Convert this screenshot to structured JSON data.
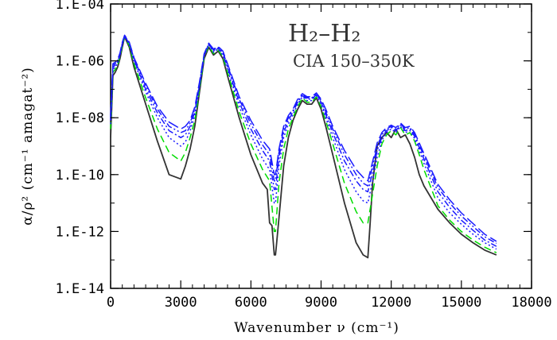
{
  "chart_data": {
    "type": "line",
    "title": "H₂–H₂",
    "subtitle": "CIA 150–350K",
    "xlabel": "Wavenumber ν (cm⁻¹)",
    "ylabel": "α/ρ² (cm⁻¹ amagat⁻²)",
    "xlim": [
      0,
      18000
    ],
    "ylim": [
      1e-14,
      0.0001
    ],
    "yscale": "log",
    "x_ticks": [
      "0",
      "3000",
      "6000",
      "9000",
      "12000",
      "15000",
      "18000"
    ],
    "y_ticks": [
      "1.E-14",
      "1.E-12",
      "1.E-10",
      "1.E-08",
      "1.E-06",
      "1.E-04"
    ],
    "grid": false,
    "series": [
      {
        "color": "#333333",
        "dash": "solid",
        "x": [
          0,
          100,
          200,
          300,
          400,
          500,
          600,
          800,
          1000,
          1500,
          2000,
          2500,
          3000,
          3200,
          3400,
          3600,
          3800,
          4000,
          4200,
          4400,
          4600,
          4800,
          5000,
          5500,
          6000,
          6500,
          6700,
          6800,
          6900,
          7000,
          7050,
          7100,
          7200,
          7400,
          7600,
          7800,
          8000,
          8200,
          8400,
          8600,
          8800,
          9000,
          9200,
          9500,
          10000,
          10500,
          10800,
          11000,
          11100,
          11200,
          11400,
          11600,
          11800,
          12000,
          12200,
          12400,
          12600,
          12800,
          13000,
          13200,
          13400,
          14000,
          14500,
          15000,
          15500,
          16000,
          16500
        ],
        "y": [
          2e-09,
          3e-07,
          4e-07,
          6e-07,
          1.2e-06,
          3e-06,
          7e-06,
          3e-06,
          6e-07,
          3e-08,
          1.5e-09,
          1e-10,
          7e-11,
          2e-10,
          8e-10,
          5e-09,
          8e-08,
          1.2e-06,
          3e-06,
          1.6e-06,
          2.2e-06,
          1.2e-06,
          3e-07,
          1e-08,
          5e-10,
          5e-11,
          3e-11,
          2e-12,
          1.6e-12,
          1.5e-13,
          1.5e-13,
          4e-13,
          3e-12,
          2e-10,
          2e-09,
          8e-09,
          2e-08,
          4e-08,
          3e-08,
          3e-08,
          5e-08,
          2e-08,
          5e-09,
          5e-10,
          1e-11,
          4e-13,
          1.5e-13,
          1.2e-13,
          2e-12,
          5e-11,
          1e-09,
          2e-09,
          3e-09,
          2e-09,
          4e-09,
          2e-09,
          2.5e-09,
          1.2e-09,
          4e-10,
          1e-10,
          4e-11,
          6e-12,
          2e-12,
          8e-13,
          4e-13,
          2.2e-13,
          1.5e-13
        ]
      },
      {
        "color": "#00dd00",
        "dash": "dashed",
        "x": [
          0,
          100,
          200,
          300,
          400,
          500,
          600,
          800,
          1000,
          1500,
          2000,
          2500,
          3000,
          3200,
          3400,
          3600,
          3800,
          4000,
          4200,
          4400,
          4600,
          4800,
          5000,
          5500,
          6000,
          6500,
          6800,
          7000,
          7050,
          7200,
          7400,
          7600,
          7800,
          8000,
          8200,
          8400,
          8600,
          8800,
          9000,
          9200,
          9500,
          10000,
          10500,
          10800,
          11000,
          11200,
          11400,
          11600,
          11800,
          12000,
          12200,
          12400,
          12600,
          12800,
          13000,
          13200,
          13400,
          14000,
          14500,
          15000,
          15500,
          16000,
          16500
        ],
        "y": [
          4e-09,
          4e-07,
          5e-07,
          7e-07,
          1.5e-06,
          3.5e-06,
          7e-06,
          3.5e-06,
          8e-07,
          5e-08,
          4e-09,
          6e-10,
          3e-10,
          6e-10,
          2e-09,
          8e-09,
          1e-07,
          1.4e-06,
          3.4e-06,
          1.8e-06,
          2.4e-06,
          1.4e-06,
          4e-07,
          1.6e-08,
          1.2e-09,
          1.5e-10,
          6e-11,
          1e-12,
          1e-12,
          5e-11,
          8e-10,
          4e-09,
          1e-08,
          2.5e-08,
          5e-08,
          3.5e-08,
          3.5e-08,
          5.5e-08,
          2.5e-08,
          8e-09,
          1.2e-09,
          5e-11,
          5e-12,
          2e-12,
          2e-12,
          2e-11,
          2e-10,
          1.2e-09,
          2.5e-09,
          3.5e-09,
          2.5e-09,
          4.5e-09,
          2.5e-09,
          3e-09,
          1.5e-09,
          5e-10,
          1.5e-10,
          8e-12,
          2.5e-12,
          1e-12,
          5e-13,
          2.8e-13,
          1.8e-13
        ]
      },
      {
        "color": "#1a1aff",
        "dash": "dotted",
        "x": [
          0,
          100,
          200,
          300,
          400,
          500,
          600,
          800,
          1000,
          1500,
          2000,
          2500,
          3000,
          3200,
          3400,
          3600,
          3800,
          4000,
          4200,
          4400,
          4600,
          4800,
          5000,
          5500,
          6000,
          6500,
          6800,
          7000,
          7050,
          7200,
          7400,
          7600,
          7800,
          8000,
          8200,
          8400,
          8600,
          8800,
          9000,
          9200,
          9500,
          10000,
          10500,
          10800,
          11000,
          11200,
          11400,
          11600,
          11800,
          12000,
          12200,
          12400,
          12600,
          12800,
          13000,
          13200,
          13400,
          14000,
          14500,
          15000,
          15500,
          16000,
          16500
        ],
        "y": [
          6e-09,
          5e-07,
          6e-07,
          8e-07,
          1.6e-06,
          3.8e-06,
          7.2e-06,
          3.8e-06,
          1e-06,
          8e-08,
          1e-08,
          2e-09,
          1e-09,
          1.4e-09,
          3.5e-09,
          1.2e-08,
          1.2e-07,
          1.5e-06,
          3.6e-06,
          2e-06,
          2.6e-06,
          1.6e-06,
          5e-07,
          2.5e-08,
          2.5e-09,
          3.5e-10,
          1.5e-10,
          1e-11,
          1e-11,
          2e-10,
          2e-09,
          6e-09,
          1.3e-08,
          3e-08,
          5.5e-08,
          4e-08,
          4e-08,
          6e-08,
          3e-08,
          1e-08,
          2e-09,
          1.5e-10,
          2.5e-11,
          1.2e-11,
          1e-11,
          6e-11,
          4e-10,
          1.6e-09,
          3e-09,
          4e-09,
          3e-09,
          5e-09,
          3e-09,
          3.5e-09,
          1.8e-09,
          7e-10,
          2.5e-10,
          1.5e-11,
          4.5e-12,
          1.8e-12,
          8e-13,
          4e-13,
          2.4e-13
        ]
      },
      {
        "color": "#1a1aff",
        "dash": "dash-dot",
        "x": [
          0,
          100,
          200,
          300,
          400,
          500,
          600,
          800,
          1000,
          1500,
          2000,
          2500,
          3000,
          3200,
          3400,
          3600,
          3800,
          4000,
          4200,
          4400,
          4600,
          4800,
          5000,
          5500,
          6000,
          6500,
          6800,
          7000,
          7050,
          7200,
          7400,
          7600,
          7800,
          8000,
          8200,
          8400,
          8600,
          8800,
          9000,
          9200,
          9500,
          10000,
          10500,
          10800,
          11000,
          11200,
          11400,
          11600,
          11800,
          12000,
          12200,
          12400,
          12600,
          12800,
          13000,
          13200,
          13400,
          14000,
          14500,
          15000,
          15500,
          16000,
          16500
        ],
        "y": [
          8e-09,
          6e-07,
          7e-07,
          9e-07,
          1.7e-06,
          4e-06,
          7.5e-06,
          4e-06,
          1.1e-06,
          1e-07,
          1.5e-08,
          3.5e-09,
          2e-09,
          2.5e-09,
          5e-09,
          1.6e-08,
          1.4e-07,
          1.6e-06,
          3.8e-06,
          2.2e-06,
          2.8e-06,
          1.8e-06,
          6e-07,
          3.5e-08,
          4e-09,
          7e-10,
          3e-10,
          3e-11,
          3e-11,
          4e-10,
          3e-09,
          8e-09,
          1.6e-08,
          3.5e-08,
          6e-08,
          4.5e-08,
          4.5e-08,
          6.5e-08,
          3.5e-08,
          1.3e-08,
          3e-09,
          3e-10,
          6e-11,
          3e-11,
          2.5e-11,
          1.2e-10,
          7e-10,
          2e-09,
          3.5e-09,
          4.5e-09,
          3.5e-09,
          5.5e-09,
          3.5e-09,
          4e-09,
          2.2e-09,
          9e-10,
          3.5e-10,
          2.5e-11,
          7e-12,
          2.5e-12,
          1.1e-12,
          5e-13,
          3e-13
        ]
      },
      {
        "color": "#1a1aff",
        "dash": "dash-dot-dot",
        "x": [
          0,
          100,
          200,
          300,
          400,
          500,
          600,
          800,
          1000,
          1500,
          2000,
          2500,
          3000,
          3200,
          3400,
          3600,
          3800,
          4000,
          4200,
          4400,
          4600,
          4800,
          5000,
          5500,
          6000,
          6500,
          6800,
          7000,
          7050,
          7200,
          7400,
          7600,
          7800,
          8000,
          8200,
          8400,
          8600,
          8800,
          9000,
          9200,
          9500,
          10000,
          10500,
          10800,
          11000,
          11200,
          11400,
          11600,
          11800,
          12000,
          12200,
          12400,
          12600,
          12800,
          13000,
          13200,
          13400,
          14000,
          14500,
          15000,
          15500,
          16000,
          16500
        ],
        "y": [
          1e-08,
          7e-07,
          8e-07,
          1e-06,
          1.8e-06,
          4.2e-06,
          7.8e-06,
          4.2e-06,
          1.2e-06,
          1.3e-07,
          2e-08,
          5e-09,
          3e-09,
          3.5e-09,
          6.5e-09,
          2e-08,
          1.6e-07,
          1.7e-06,
          4e-06,
          2.4e-06,
          3e-06,
          2e-06,
          7e-07,
          4.5e-08,
          6e-09,
          1.1e-09,
          5e-10,
          6e-11,
          6e-11,
          6e-10,
          4e-09,
          1e-08,
          1.8e-08,
          4e-08,
          6.5e-08,
          5e-08,
          5e-08,
          7e-08,
          4e-08,
          1.6e-08,
          4e-09,
          5e-10,
          1e-10,
          5e-11,
          4e-11,
          2e-10,
          1e-09,
          2.5e-09,
          4e-09,
          5e-09,
          4e-09,
          6e-09,
          4e-09,
          4.5e-09,
          2.6e-09,
          1.1e-09,
          4.5e-10,
          3.5e-11,
          1e-11,
          3.5e-12,
          1.5e-12,
          6.5e-13,
          3.8e-13
        ]
      },
      {
        "color": "#1a1aff",
        "dash": "long-dash",
        "x": [
          0,
          100,
          200,
          300,
          400,
          500,
          600,
          800,
          1000,
          1500,
          2000,
          2500,
          3000,
          3200,
          3400,
          3600,
          3800,
          4000,
          4200,
          4400,
          4600,
          4800,
          5000,
          5500,
          6000,
          6500,
          6800,
          7000,
          7050,
          7200,
          7400,
          7600,
          7800,
          8000,
          8200,
          8400,
          8600,
          8800,
          9000,
          9200,
          9500,
          10000,
          10500,
          10800,
          11000,
          11200,
          11400,
          11600,
          11800,
          12000,
          12200,
          12400,
          12600,
          12800,
          13000,
          13200,
          13400,
          14000,
          14500,
          15000,
          15500,
          16000,
          16500
        ],
        "y": [
          1.2e-08,
          8e-07,
          9e-07,
          1.1e-06,
          1.9e-06,
          4.5e-06,
          8e-06,
          4.5e-06,
          1.3e-06,
          1.6e-07,
          2.5e-08,
          7e-09,
          4e-09,
          5e-09,
          8e-09,
          2.4e-08,
          1.8e-07,
          1.8e-06,
          4.2e-06,
          2.6e-06,
          3.2e-06,
          2.2e-06,
          8e-07,
          5.5e-08,
          8e-09,
          1.6e-09,
          8e-10,
          1e-10,
          1e-10,
          8e-10,
          5e-09,
          1.2e-08,
          2e-08,
          4.5e-08,
          7e-08,
          5.5e-08,
          5.5e-08,
          7.5e-08,
          4.5e-08,
          2e-08,
          5e-09,
          7e-10,
          1.5e-10,
          8e-11,
          6e-11,
          2.8e-10,
          1.3e-09,
          3e-09,
          4.5e-09,
          5.5e-09,
          4.5e-09,
          6.5e-09,
          4.5e-09,
          5e-09,
          3e-09,
          1.3e-09,
          5.5e-10,
          4.5e-11,
          1.3e-11,
          4.5e-12,
          1.9e-12,
          8e-13,
          4.5e-13
        ]
      }
    ]
  }
}
